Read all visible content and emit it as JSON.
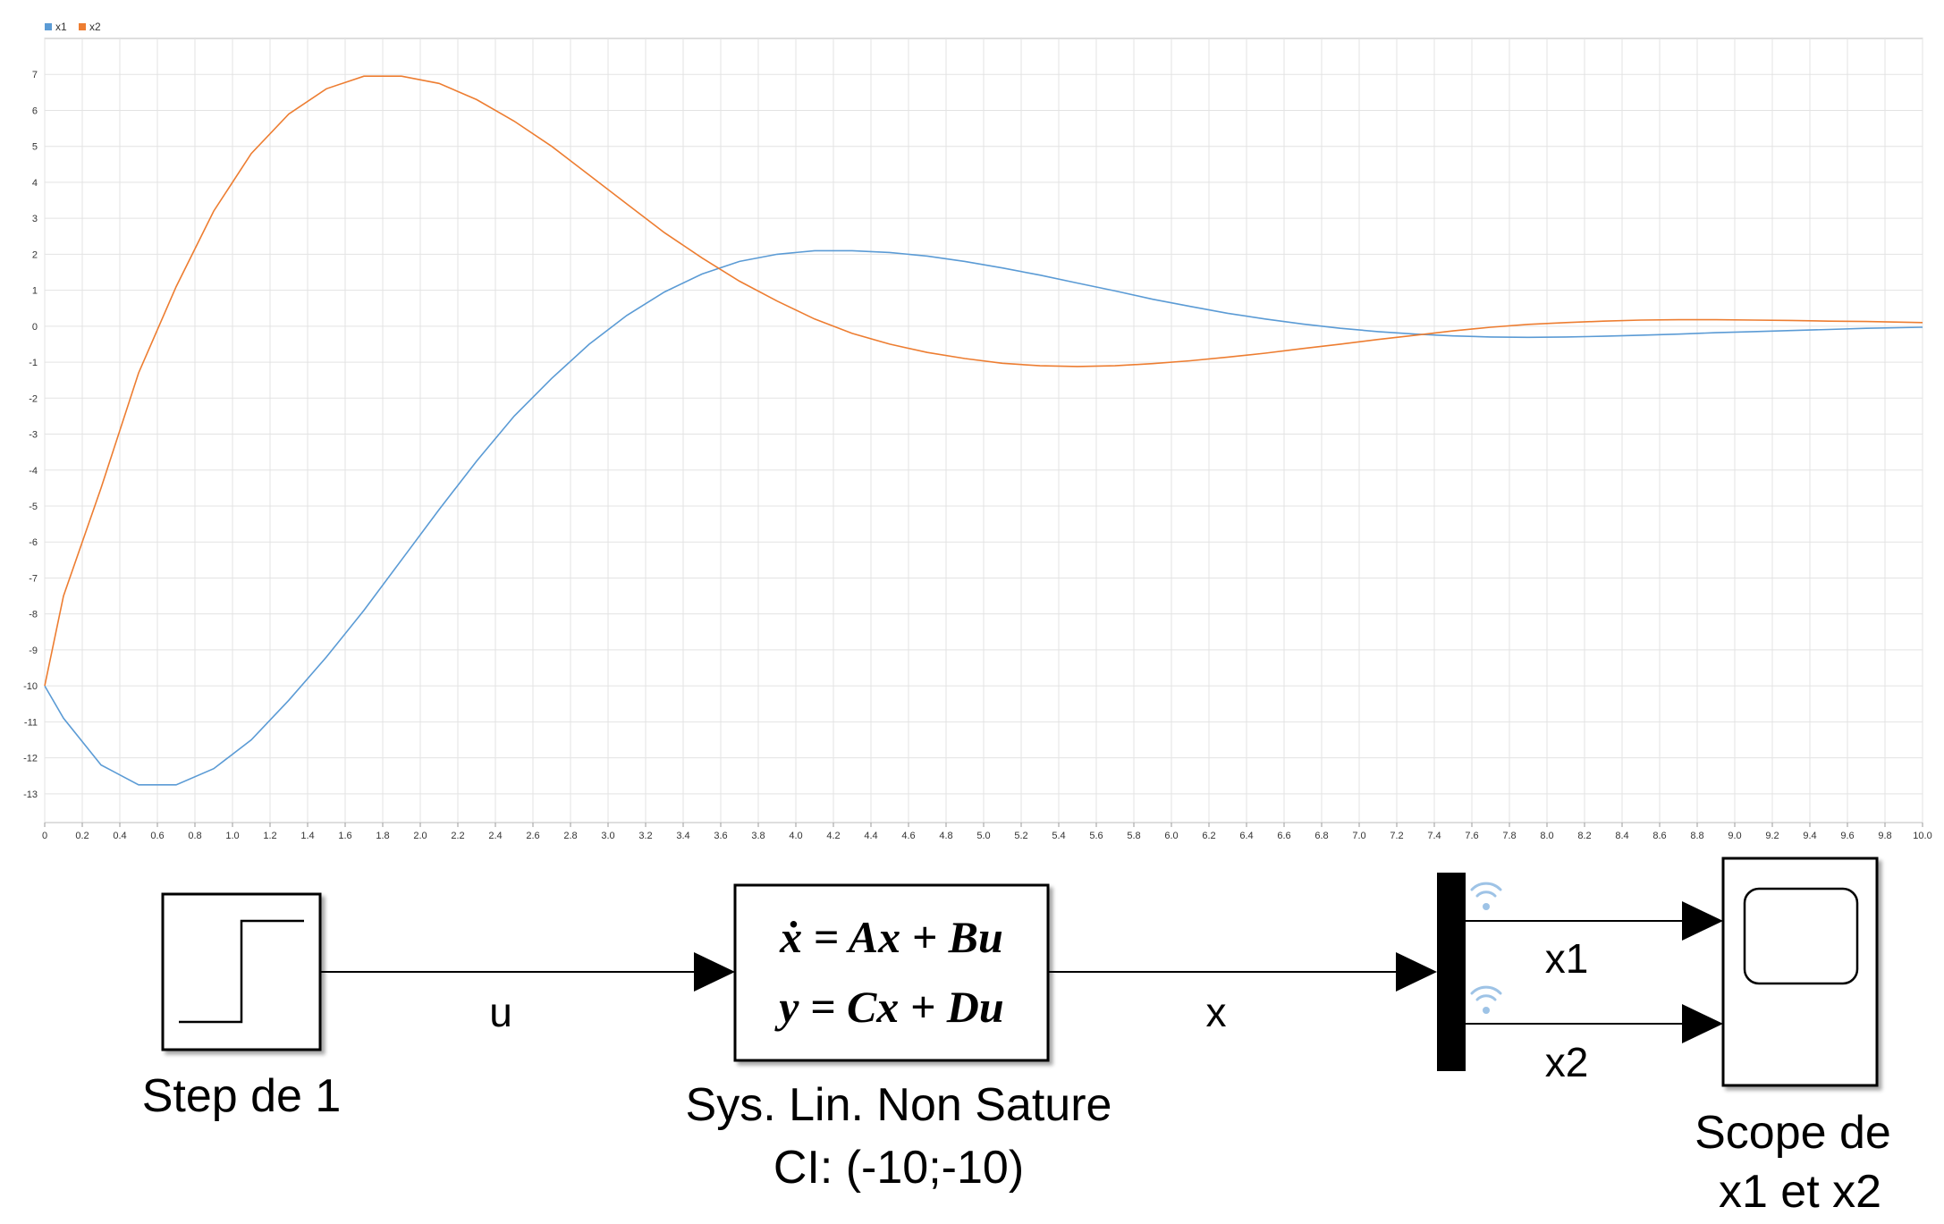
{
  "chart_data": {
    "type": "line",
    "title": "",
    "xlabel": "",
    "ylabel": "",
    "xlim": [
      0,
      10
    ],
    "ylim": [
      -13.8,
      8
    ],
    "grid": true,
    "legend_position": "top-left",
    "x_ticks": [
      "0",
      "0.2",
      "0.4",
      "0.6",
      "0.8",
      "1.0",
      "1.2",
      "1.4",
      "1.6",
      "1.8",
      "2.0",
      "2.2",
      "2.4",
      "2.6",
      "2.8",
      "3.0",
      "3.2",
      "3.4",
      "3.6",
      "3.8",
      "4.0",
      "4.2",
      "4.4",
      "4.6",
      "4.8",
      "5.0",
      "5.2",
      "5.4",
      "5.6",
      "5.8",
      "6.0",
      "6.2",
      "6.4",
      "6.6",
      "6.8",
      "7.0",
      "7.2",
      "7.4",
      "7.6",
      "7.8",
      "8.0",
      "8.2",
      "8.4",
      "8.6",
      "8.8",
      "9.0",
      "9.2",
      "9.4",
      "9.6",
      "9.8",
      "10.0"
    ],
    "y_ticks": [
      "7",
      "6",
      "5",
      "4",
      "3",
      "2",
      "1",
      "0",
      "-1",
      "-2",
      "-3",
      "-4",
      "-5",
      "-6",
      "-7",
      "-8",
      "-9",
      "-10",
      "-11",
      "-12",
      "-13"
    ],
    "series": [
      {
        "name": "x1",
        "color": "#5b9bd5",
        "x": [
          0,
          0.1,
          0.3,
          0.5,
          0.7,
          0.9,
          1.1,
          1.3,
          1.5,
          1.7,
          1.9,
          2.1,
          2.3,
          2.5,
          2.7,
          2.9,
          3.1,
          3.3,
          3.5,
          3.7,
          3.9,
          4.1,
          4.3,
          4.5,
          4.7,
          4.9,
          5.1,
          5.3,
          5.5,
          5.7,
          5.9,
          6.1,
          6.3,
          6.5,
          6.7,
          6.9,
          7.1,
          7.3,
          7.5,
          7.7,
          7.9,
          8.1,
          8.3,
          8.5,
          8.7,
          8.9,
          9.1,
          9.3,
          9.5,
          9.7,
          10.0
        ],
        "y": [
          -10,
          -10.9,
          -12.2,
          -12.75,
          -12.75,
          -12.3,
          -11.5,
          -10.4,
          -9.2,
          -7.9,
          -6.5,
          -5.1,
          -3.75,
          -2.5,
          -1.45,
          -0.5,
          0.3,
          0.95,
          1.45,
          1.8,
          2.0,
          2.1,
          2.1,
          2.05,
          1.95,
          1.8,
          1.62,
          1.42,
          1.2,
          0.98,
          0.75,
          0.55,
          0.36,
          0.2,
          0.06,
          -0.06,
          -0.15,
          -0.22,
          -0.27,
          -0.3,
          -0.31,
          -0.3,
          -0.28,
          -0.25,
          -0.22,
          -0.18,
          -0.15,
          -0.12,
          -0.09,
          -0.06,
          -0.03
        ]
      },
      {
        "name": "x2",
        "color": "#ed7d31",
        "x": [
          0,
          0.1,
          0.3,
          0.5,
          0.7,
          0.9,
          1.1,
          1.3,
          1.5,
          1.7,
          1.9,
          2.1,
          2.3,
          2.5,
          2.7,
          2.9,
          3.1,
          3.3,
          3.5,
          3.7,
          3.9,
          4.1,
          4.3,
          4.5,
          4.7,
          4.9,
          5.1,
          5.3,
          5.5,
          5.7,
          5.9,
          6.1,
          6.3,
          6.5,
          6.7,
          6.9,
          7.1,
          7.3,
          7.5,
          7.7,
          7.9,
          8.1,
          8.3,
          8.5,
          8.7,
          8.9,
          9.1,
          9.3,
          9.5,
          9.7,
          10.0
        ],
        "y": [
          -10,
          -7.5,
          -4.5,
          -1.3,
          1.1,
          3.2,
          4.8,
          5.9,
          6.6,
          6.95,
          6.95,
          6.75,
          6.3,
          5.7,
          5.0,
          4.2,
          3.4,
          2.6,
          1.9,
          1.25,
          0.7,
          0.2,
          -0.2,
          -0.5,
          -0.73,
          -0.9,
          -1.03,
          -1.1,
          -1.12,
          -1.1,
          -1.04,
          -0.96,
          -0.86,
          -0.75,
          -0.62,
          -0.5,
          -0.37,
          -0.25,
          -0.13,
          -0.03,
          0.05,
          0.1,
          0.14,
          0.17,
          0.18,
          0.18,
          0.17,
          0.16,
          0.14,
          0.13,
          0.1
        ]
      }
    ]
  },
  "diagram": {
    "step_label": "Step de 1",
    "system_label_line1": "Sys. Lin. Non Sature",
    "system_label_line2": "CI: (-10;-10)",
    "equation_line1": "ẋ = Ax + Bu",
    "equation_line2": "y = Cx + Du",
    "scope_label_line1": "Scope de",
    "scope_label_line2": "x1 et x2",
    "signal_u": "u",
    "signal_x": "x",
    "signal_x1": "x1",
    "signal_x2": "x2"
  }
}
